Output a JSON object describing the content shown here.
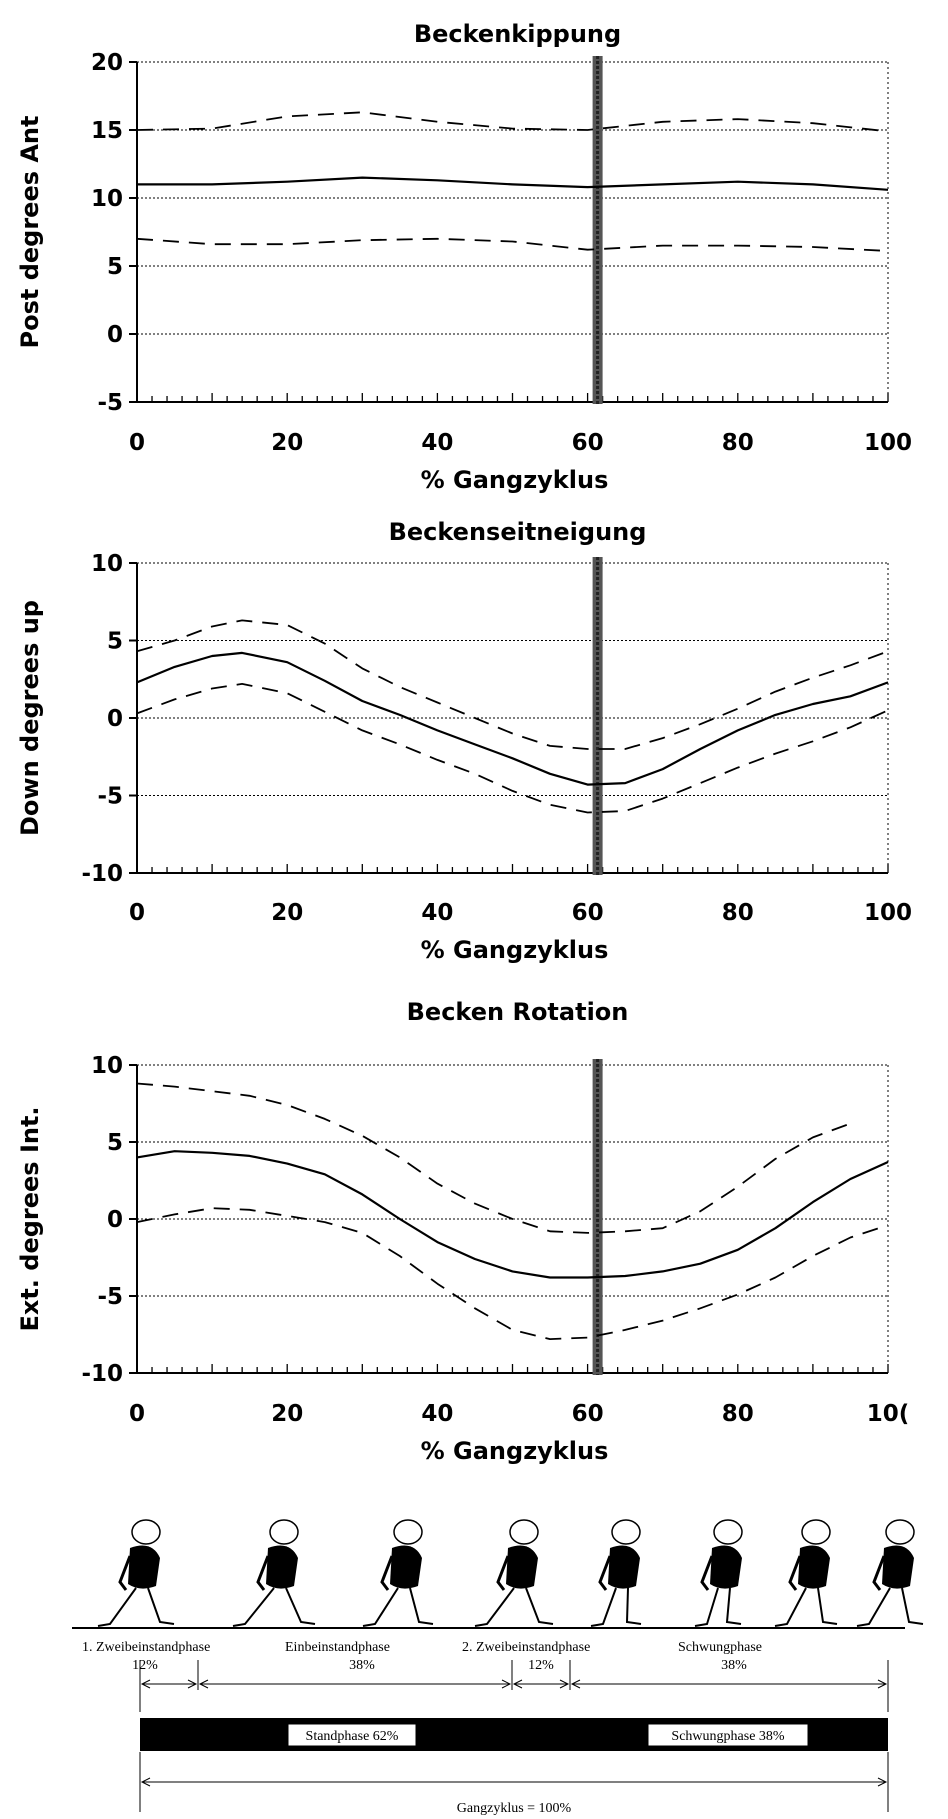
{
  "chart_data": [
    {
      "type": "line",
      "title": "Beckenkippung",
      "xlabel": "% Gangzyklus",
      "ylabel": "Post   degrees   Ant",
      "xlim": [
        0,
        100
      ],
      "ylim": [
        -5,
        20
      ],
      "xticks": [
        "0",
        "20",
        "40",
        "60",
        "80",
        "100"
      ],
      "yticks": [
        "20",
        "15",
        "10",
        "5",
        "0",
        "-5"
      ],
      "vline": 60,
      "grid_y": [
        15,
        10,
        5,
        0
      ],
      "x": [
        0,
        10,
        20,
        30,
        40,
        50,
        60,
        70,
        80,
        90,
        100
      ],
      "series": [
        {
          "style": "solid",
          "values": [
            11.0,
            11.0,
            11.2,
            11.5,
            11.3,
            11.0,
            10.8,
            11.0,
            11.2,
            11.0,
            10.6
          ]
        },
        {
          "style": "dashed",
          "values": [
            15.0,
            15.1,
            16.0,
            16.3,
            15.6,
            15.1,
            15.0,
            15.6,
            15.8,
            15.5,
            14.9
          ]
        },
        {
          "style": "dashed",
          "values": [
            7.0,
            6.6,
            6.6,
            6.9,
            7.0,
            6.8,
            6.2,
            6.5,
            6.5,
            6.4,
            6.1
          ]
        }
      ]
    },
    {
      "type": "line",
      "title": "Beckenseitneigung",
      "xlabel": "% Gangzyklus",
      "ylabel": "Down   degrees   up",
      "xlim": [
        0,
        100
      ],
      "ylim": [
        -10,
        10
      ],
      "xticks": [
        "0",
        "20",
        "40",
        "60",
        "80",
        "100"
      ],
      "yticks": [
        "10",
        "5",
        "0",
        "-5",
        "-10"
      ],
      "vline": 60,
      "grid_y": [
        5,
        0,
        -5
      ],
      "x": [
        0,
        5,
        10,
        14,
        20,
        25,
        30,
        35,
        40,
        45,
        50,
        55,
        60,
        65,
        70,
        75,
        80,
        85,
        90,
        95,
        100
      ],
      "series": [
        {
          "style": "solid",
          "values": [
            2.3,
            3.3,
            4.0,
            4.2,
            3.6,
            2.4,
            1.1,
            0.2,
            -0.8,
            -1.7,
            -2.6,
            -3.6,
            -4.3,
            -4.2,
            -3.3,
            -2.0,
            -0.8,
            0.2,
            0.9,
            1.4,
            2.3
          ]
        },
        {
          "style": "dashed",
          "values": [
            4.3,
            5.0,
            5.9,
            6.3,
            6.0,
            4.8,
            3.2,
            2.0,
            1.0,
            0.0,
            -1.0,
            -1.8,
            -2.0,
            -2.0,
            -1.3,
            -0.4,
            0.6,
            1.7,
            2.6,
            3.4,
            4.3
          ]
        },
        {
          "style": "dashed",
          "values": [
            0.3,
            1.2,
            1.9,
            2.2,
            1.6,
            0.4,
            -0.8,
            -1.7,
            -2.7,
            -3.6,
            -4.7,
            -5.6,
            -6.1,
            -6.0,
            -5.2,
            -4.2,
            -3.2,
            -2.3,
            -1.5,
            -0.6,
            0.5
          ]
        }
      ]
    },
    {
      "type": "line",
      "title": "Becken Rotation",
      "xlabel": "% Gangzyklus",
      "ylabel": "Ext.   degrees   Int.",
      "xlim": [
        0,
        100
      ],
      "ylim": [
        -10,
        10
      ],
      "xticks": [
        "0",
        "20",
        "40",
        "60",
        "80",
        "10("
      ],
      "yticks": [
        "10",
        "5",
        "0",
        "-5",
        "-10"
      ],
      "vline": 60,
      "grid_y": [
        5,
        0,
        -5
      ],
      "x": [
        0,
        5,
        10,
        15,
        20,
        25,
        30,
        35,
        40,
        45,
        50,
        55,
        60,
        65,
        70,
        75,
        80,
        85,
        90,
        95,
        100
      ],
      "series": [
        {
          "style": "solid",
          "values": [
            4.0,
            4.4,
            4.3,
            4.1,
            3.6,
            2.9,
            1.6,
            0.0,
            -1.5,
            -2.6,
            -3.4,
            -3.8,
            -3.8,
            -3.7,
            -3.4,
            -2.9,
            -2.0,
            -0.6,
            1.1,
            2.6,
            3.7
          ]
        },
        {
          "style": "dashed",
          "values": [
            8.8,
            8.6,
            8.3,
            8.0,
            7.4,
            6.5,
            5.4,
            4.0,
            2.3,
            1.0,
            0.0,
            -0.8,
            -0.9,
            -0.8,
            -0.6,
            0.5,
            2.1,
            3.9,
            5.3,
            6.2,
            null
          ]
        },
        {
          "style": "dashed",
          "values": [
            -0.2,
            0.3,
            0.7,
            0.6,
            0.2,
            -0.2,
            -0.9,
            -2.4,
            -4.2,
            -5.8,
            -7.2,
            -7.8,
            -7.7,
            -7.2,
            -6.6,
            -5.8,
            -4.9,
            -3.8,
            -2.4,
            -1.2,
            -0.4
          ]
        }
      ]
    }
  ],
  "gait": {
    "phase_labels": [
      "1. Zweibeinstandphase",
      "Einbeinstandphase",
      "2. Zweibeinstandphase",
      "Schwungphase"
    ],
    "phase_pcts": [
      "12%",
      "38%",
      "12%",
      "38%"
    ],
    "stand_label": "Standphase 62%",
    "swing_label": "Schwungphase 38%",
    "cycle_label": "Gangzyklus = 100%"
  }
}
